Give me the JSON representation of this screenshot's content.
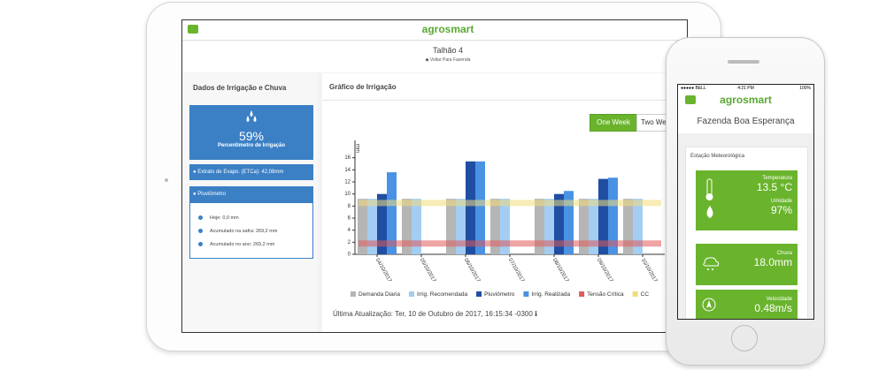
{
  "tablet": {
    "logo": "agrosmart",
    "title": "Talhão 4",
    "back_link": "Voltar Para Fazenda",
    "left_panel": {
      "title": "Dados de Irrigação e Chuva",
      "percent": "59%",
      "percent_label": "Percentimetro de Irrigação",
      "evapo": "Extrato de Evapo. (ETCa): 42,08mm",
      "pluviometro": {
        "title": "Pluviômetro",
        "items": [
          "Hoje: 0,0 mm",
          "Acumulado na safra: 269,2 mm",
          "Acumulado no ano: 269,2 mm"
        ]
      }
    },
    "right_panel": {
      "title": "Gráfico de Irrigação",
      "buttons": [
        "One Week",
        "Two Weeks"
      ],
      "updated": "Última Atualização: Ter, 10 de Outubro de 2017, 16:15:34 -0300"
    }
  },
  "phone": {
    "carrier": "BELL",
    "time": "4:21 PM",
    "battery": "100%",
    "logo": "agrosmart",
    "title": "Fazenda Boa Esperança",
    "section": "Estação Meteorológica",
    "cards": [
      {
        "label": "Temperatura",
        "value": "13.5 °C"
      },
      {
        "label": "Umidade",
        "value": "97%"
      },
      {
        "label": "Chuva",
        "value": "18.0mm"
      },
      {
        "label": "Velocidade",
        "value": "0.48m/s"
      }
    ]
  },
  "chart_data": {
    "type": "bar",
    "y_label": "mm",
    "categories": [
      "04/10/2017",
      "05/10/2017",
      "06/10/2017",
      "07/10/2017",
      "08/10/2017",
      "09/10/2017",
      "10/10/2017"
    ],
    "ylim": [
      0,
      18
    ],
    "yticks": [
      0,
      2,
      4,
      6,
      8,
      10,
      12,
      14,
      16
    ],
    "series": [
      {
        "name": "Demanda Diaria",
        "color": "#b5b5b5",
        "values": [
          9.2,
          9.2,
          9.2,
          9.2,
          9.2,
          9.2,
          9.2
        ]
      },
      {
        "name": "Irrig. Recomendada",
        "color": "#a3cdf3",
        "values": [
          9.2,
          9.2,
          9.2,
          9.2,
          9.2,
          9.2,
          9.2
        ]
      },
      {
        "name": "Pluviômetro",
        "color": "#1f4ea3",
        "values": [
          10,
          0,
          15.4,
          0,
          10,
          12.5,
          0
        ]
      },
      {
        "name": "Irrig. Realizada",
        "color": "#4a92e4",
        "values": [
          13.6,
          0,
          15.4,
          0,
          10.5,
          12.7,
          0
        ]
      },
      {
        "name": "Tensão Crítica",
        "color": "#e05a5a",
        "type": "band",
        "values": [
          1.8,
          1.8,
          1.8,
          1.8,
          1.8,
          1.8,
          1.8
        ]
      },
      {
        "name": "CC",
        "color": "#f2dc7a",
        "type": "band",
        "values": [
          8.5,
          8.5,
          8.5,
          8.5,
          8.5,
          8.5,
          8.5
        ]
      }
    ]
  }
}
